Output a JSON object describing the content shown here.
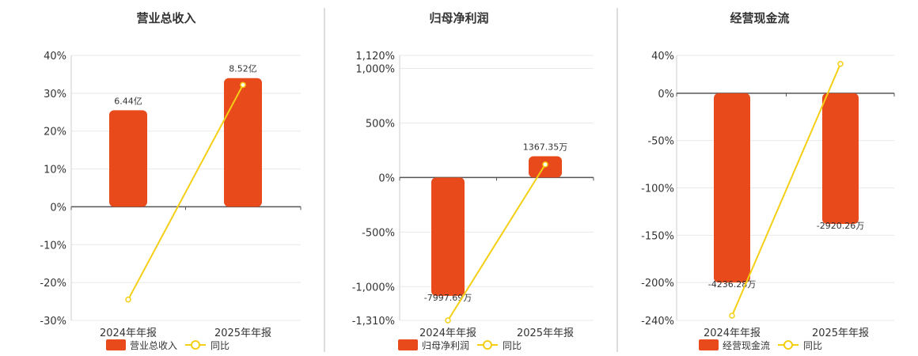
{
  "colors": {
    "bar": "#E84A1B",
    "line": "#F5CF14",
    "axis": "#555555",
    "grid": "#E8E8E8",
    "divider": "#BBBBBB"
  },
  "chart_data": [
    {
      "type": "bar",
      "title": "营业总收入",
      "categories": [
        "2024年年报",
        "2025年年报"
      ],
      "series": [
        {
          "name": "营业总收入",
          "kind": "bar",
          "values": [
            25.5,
            34.0
          ],
          "labels": [
            "6.44亿",
            "8.52亿"
          ]
        },
        {
          "name": "同比",
          "kind": "line",
          "values": [
            -24.5,
            32.2
          ]
        }
      ],
      "y_ticks": [
        40,
        30,
        20,
        10,
        0,
        -10,
        -20,
        -30
      ],
      "y_tick_labels": [
        "40%",
        "30%",
        "20%",
        "10%",
        "0%",
        "-10%",
        "-20%",
        "-30%"
      ],
      "ylim": [
        -30,
        40
      ],
      "grid": true,
      "legend_position": "bottom"
    },
    {
      "type": "bar",
      "title": "归母净利润",
      "categories": [
        "2024年年报",
        "2025年年报"
      ],
      "series": [
        {
          "name": "归母净利润",
          "kind": "bar",
          "values": [
            -1085,
            195
          ],
          "labels": [
            "-7997.69万",
            "1367.35万"
          ]
        },
        {
          "name": "同比",
          "kind": "line",
          "values": [
            -1310,
            120
          ]
        }
      ],
      "y_ticks": [
        1120,
        1000,
        500,
        0,
        -500,
        -1000,
        -1310
      ],
      "y_tick_labels": [
        "1,120%",
        "1,000%",
        "500%",
        "0%",
        "-500%",
        "-1,000%",
        "-1,310%"
      ],
      "ylim": [
        -1310,
        1120
      ],
      "grid": true,
      "legend_position": "bottom"
    },
    {
      "type": "bar",
      "title": "经营现金流",
      "categories": [
        "2024年年报",
        "2025年年报"
      ],
      "series": [
        {
          "name": "经营现金流",
          "kind": "bar",
          "values": [
            -200,
            -138
          ],
          "labels": [
            "-4236.28万",
            "-2920.26万"
          ]
        },
        {
          "name": "同比",
          "kind": "line",
          "values": [
            -235,
            31
          ]
        }
      ],
      "y_ticks": [
        40,
        0,
        -50,
        -100,
        -150,
        -200,
        -240
      ],
      "y_tick_labels": [
        "40%",
        "0%",
        "-50%",
        "-100%",
        "-150%",
        "-200%",
        "-240%"
      ],
      "ylim": [
        -240,
        40
      ],
      "grid": true,
      "legend_position": "bottom"
    }
  ]
}
